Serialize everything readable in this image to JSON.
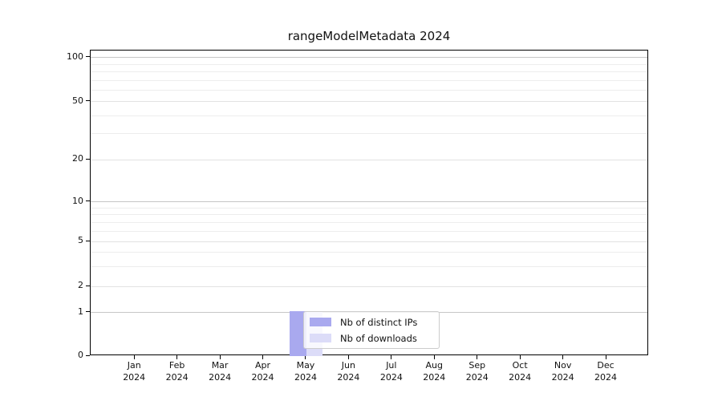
{
  "chart_data": {
    "type": "bar",
    "title": "rangeModelMetadata 2024",
    "x_year": "2024",
    "categories": [
      "Jan",
      "Feb",
      "Mar",
      "Apr",
      "May",
      "Jun",
      "Jul",
      "Aug",
      "Sep",
      "Oct",
      "Nov",
      "Dec"
    ],
    "series": [
      {
        "name": "Nb of distinct IPs",
        "color": "#a9a9ef",
        "values": [
          0,
          0,
          0,
          0,
          1,
          0,
          0,
          0,
          0,
          0,
          0,
          0
        ]
      },
      {
        "name": "Nb of downloads",
        "color": "#dcdcf8",
        "values": [
          0,
          0,
          0,
          0,
          1,
          0,
          0,
          0,
          0,
          0,
          0,
          0
        ]
      }
    ],
    "yticks": [
      0,
      1,
      2,
      5,
      10,
      20,
      50,
      100
    ],
    "yticks_minor": [
      3,
      4,
      6,
      7,
      8,
      9,
      30,
      40,
      60,
      70,
      80,
      90
    ],
    "ylim": [
      0,
      115
    ],
    "yscale": "log-like (linear below 1)",
    "grid": "horizontal",
    "legend_position": "inside bottom-center"
  },
  "colors": {
    "grid_major": "#c6c6c6",
    "grid_minor": "#ededed",
    "spine": "#000000",
    "text": "#111111",
    "legend_border": "#cccccc",
    "legend_background": "rgba(255,255,255,0.8)"
  }
}
